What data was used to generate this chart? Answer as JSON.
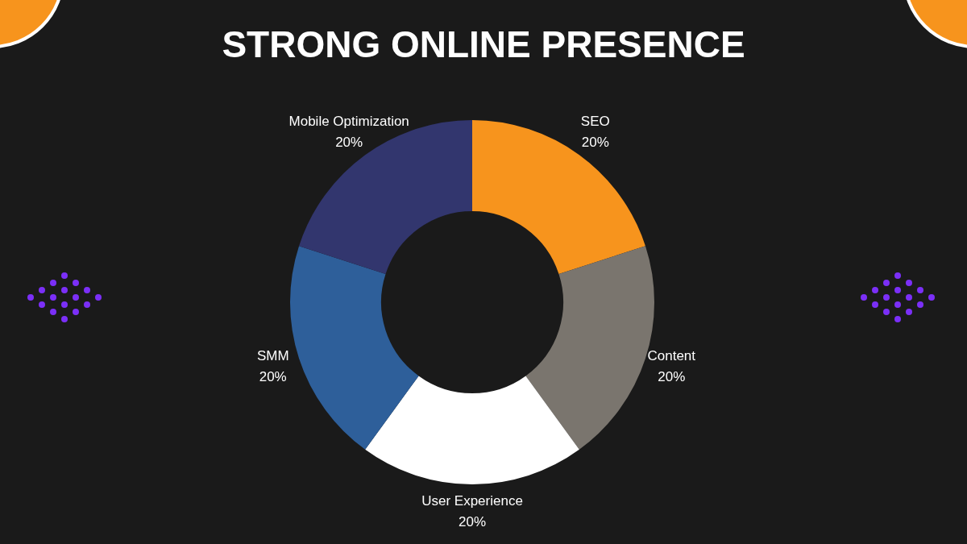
{
  "chart_data": {
    "type": "donut",
    "title": "STRONG ONLINE PRESENCE",
    "categories": [
      "SEO",
      "Content",
      "User Experience",
      "SMM",
      "Mobile Optimization"
    ],
    "values": [
      20,
      20,
      20,
      20,
      20
    ],
    "value_labels": [
      "20%",
      "20%",
      "20%",
      "20%",
      "20%"
    ],
    "colors": [
      "#f7941d",
      "#7a756e",
      "#ffffff",
      "#2e5f9a",
      "#32366e"
    ],
    "legend": false
  }
}
